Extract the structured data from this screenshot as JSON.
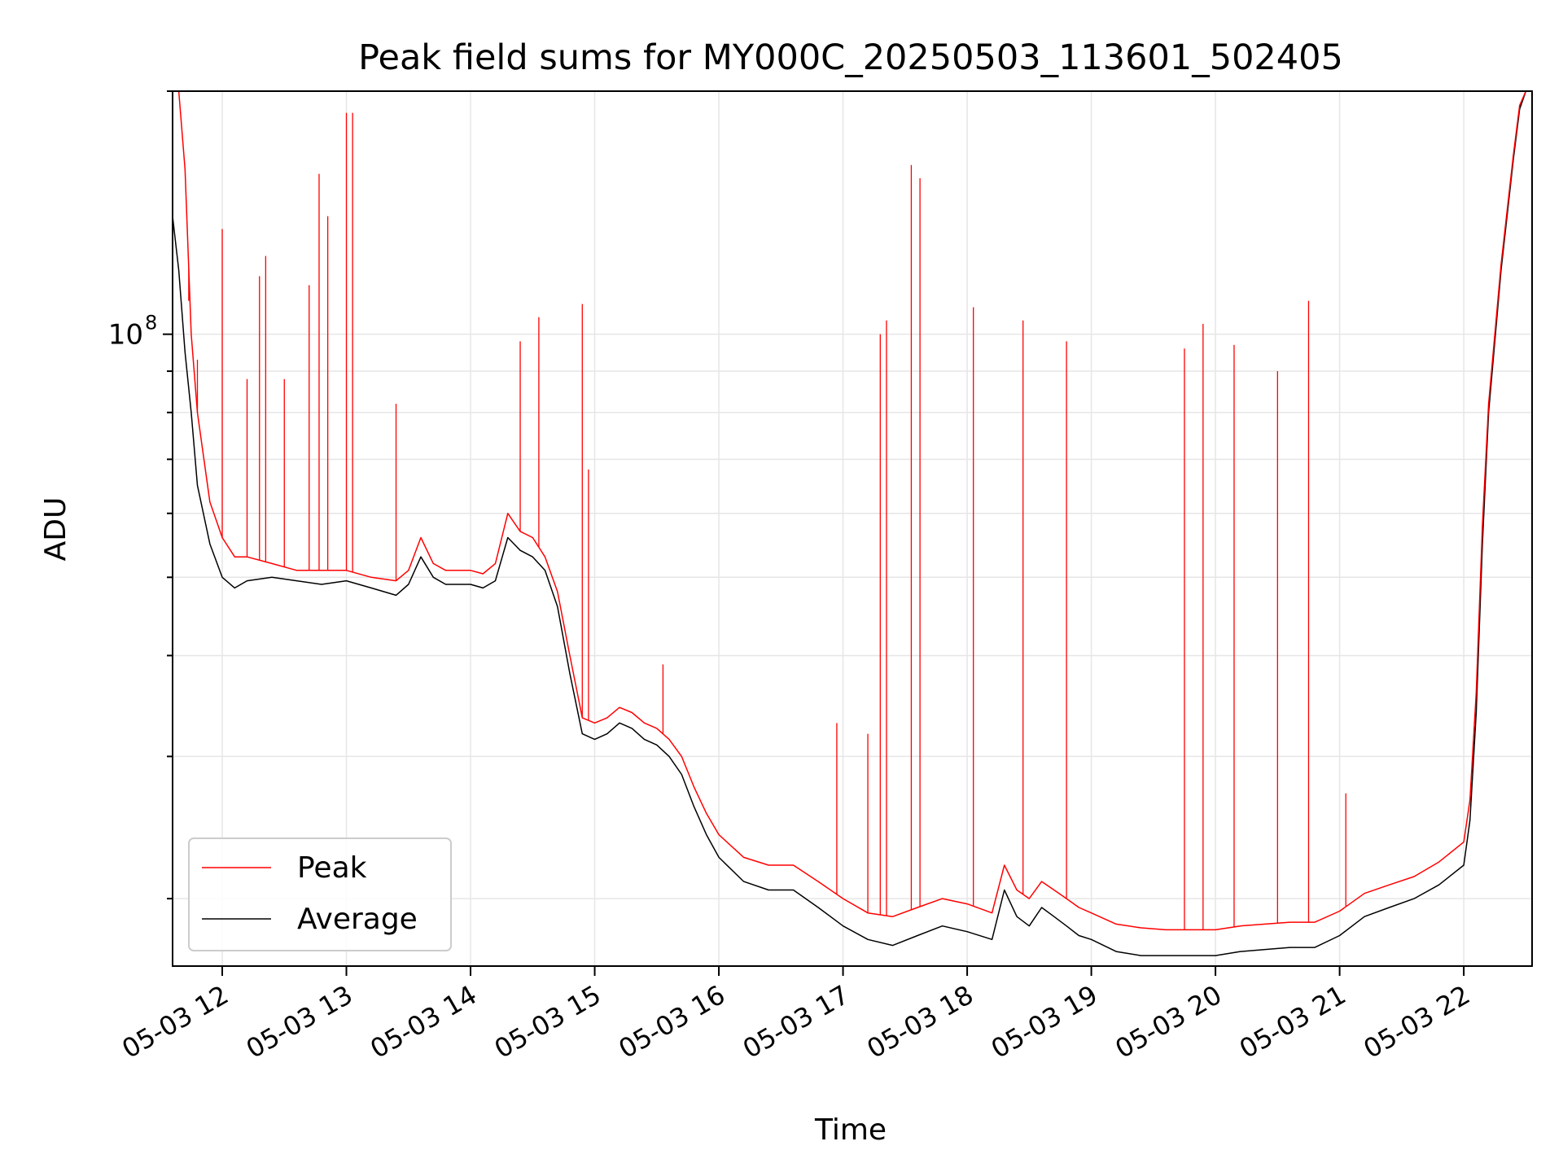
{
  "chart_data": {
    "type": "line",
    "title": "Peak field sums for MY000C_20250503_113601_502405",
    "xlabel": "Time",
    "ylabel": "ADU",
    "y_scale": "log",
    "ylim": [
      16500000,
      200000000
    ],
    "xlim_hours": [
      11.6,
      22.55
    ],
    "x_ticks": [
      {
        "hour": 12,
        "label": "05-03 12"
      },
      {
        "hour": 13,
        "label": "05-03 13"
      },
      {
        "hour": 14,
        "label": "05-03 14"
      },
      {
        "hour": 15,
        "label": "05-03 15"
      },
      {
        "hour": 16,
        "label": "05-03 16"
      },
      {
        "hour": 17,
        "label": "05-03 17"
      },
      {
        "hour": 18,
        "label": "05-03 18"
      },
      {
        "hour": 19,
        "label": "05-03 19"
      },
      {
        "hour": 20,
        "label": "05-03 20"
      },
      {
        "hour": 21,
        "label": "05-03 21"
      },
      {
        "hour": 22,
        "label": "05-03 22"
      }
    ],
    "y_major_tick": {
      "value": 100000000,
      "label_base": "10",
      "label_exp": "8"
    },
    "y_minor_ticks": [
      20000000,
      30000000,
      40000000,
      50000000,
      60000000,
      70000000,
      80000000,
      90000000,
      200000000
    ],
    "grid": true,
    "legend_position": "lower-left",
    "series": [
      {
        "name": "Average",
        "color": "#000000",
        "x": [
          11.6,
          11.65,
          11.7,
          11.75,
          11.8,
          11.9,
          12.0,
          12.1,
          12.2,
          12.4,
          12.6,
          12.8,
          13.0,
          13.2,
          13.4,
          13.5,
          13.6,
          13.7,
          13.8,
          14.0,
          14.1,
          14.2,
          14.3,
          14.4,
          14.5,
          14.6,
          14.7,
          14.8,
          14.9,
          15.0,
          15.1,
          15.2,
          15.3,
          15.4,
          15.5,
          15.6,
          15.7,
          15.8,
          15.9,
          16.0,
          16.2,
          16.4,
          16.6,
          16.8,
          17.0,
          17.2,
          17.4,
          17.6,
          17.8,
          18.0,
          18.2,
          18.3,
          18.4,
          18.5,
          18.6,
          18.7,
          18.8,
          18.9,
          19.0,
          19.2,
          19.4,
          19.6,
          19.8,
          20.0,
          20.2,
          20.4,
          20.6,
          20.8,
          21.0,
          21.2,
          21.4,
          21.6,
          21.8,
          22.0,
          22.05,
          22.1,
          22.15,
          22.2,
          22.3,
          22.4,
          22.45,
          22.5
        ],
        "y": [
          140000000,
          120000000,
          95000000,
          80000000,
          65000000,
          55000000,
          50000000,
          48500000,
          49500000,
          50000000,
          49500000,
          49000000,
          49500000,
          48500000,
          47500000,
          49000000,
          53000000,
          50000000,
          49000000,
          49000000,
          48500000,
          49500000,
          56000000,
          54000000,
          53000000,
          51000000,
          46000000,
          38000000,
          32000000,
          31500000,
          32000000,
          33000000,
          32500000,
          31500000,
          31000000,
          30000000,
          28500000,
          26000000,
          24000000,
          22500000,
          21000000,
          20500000,
          20500000,
          19500000,
          18500000,
          17800000,
          17500000,
          18000000,
          18500000,
          18200000,
          17800000,
          20500000,
          19000000,
          18500000,
          19500000,
          19000000,
          18500000,
          18000000,
          17800000,
          17200000,
          17000000,
          17000000,
          17000000,
          17000000,
          17200000,
          17300000,
          17400000,
          17400000,
          18000000,
          19000000,
          19500000,
          20000000,
          20800000,
          22000000,
          25000000,
          34000000,
          55000000,
          80000000,
          120000000,
          165000000,
          190000000,
          200000000
        ]
      },
      {
        "name": "Peak",
        "color": "#ff0000",
        "x": [
          11.6,
          11.65,
          11.7,
          11.75,
          11.8,
          11.9,
          12.0,
          12.1,
          12.2,
          12.4,
          12.6,
          12.8,
          13.0,
          13.2,
          13.4,
          13.5,
          13.6,
          13.7,
          13.8,
          14.0,
          14.1,
          14.2,
          14.3,
          14.4,
          14.5,
          14.6,
          14.7,
          14.8,
          14.9,
          15.0,
          15.1,
          15.2,
          15.3,
          15.4,
          15.5,
          15.6,
          15.7,
          15.8,
          15.9,
          16.0,
          16.2,
          16.4,
          16.6,
          16.8,
          17.0,
          17.2,
          17.4,
          17.6,
          17.8,
          18.0,
          18.2,
          18.3,
          18.4,
          18.5,
          18.6,
          18.7,
          18.8,
          18.9,
          19.0,
          19.2,
          19.4,
          19.6,
          19.8,
          20.0,
          20.2,
          20.4,
          20.6,
          20.8,
          21.0,
          21.2,
          21.4,
          21.6,
          21.8,
          22.0,
          22.05,
          22.1,
          22.15,
          22.2,
          22.3,
          22.4,
          22.45,
          22.5
        ],
        "y": [
          200000000,
          200000000,
          160000000,
          100000000,
          80000000,
          62000000,
          56000000,
          53000000,
          53000000,
          52000000,
          51000000,
          51000000,
          51000000,
          50000000,
          49500000,
          51000000,
          56000000,
          52000000,
          51000000,
          51000000,
          50500000,
          52000000,
          60000000,
          57000000,
          56000000,
          53000000,
          48000000,
          40000000,
          33500000,
          33000000,
          33500000,
          34500000,
          34000000,
          33000000,
          32500000,
          31500000,
          30000000,
          27500000,
          25500000,
          24000000,
          22500000,
          22000000,
          22000000,
          21000000,
          20000000,
          19200000,
          19000000,
          19500000,
          20000000,
          19700000,
          19200000,
          22000000,
          20500000,
          20000000,
          21000000,
          20500000,
          20000000,
          19500000,
          19200000,
          18600000,
          18400000,
          18300000,
          18300000,
          18300000,
          18500000,
          18600000,
          18700000,
          18700000,
          19300000,
          20300000,
          20800000,
          21300000,
          22200000,
          23500000,
          26500000,
          36000000,
          58000000,
          82000000,
          122000000,
          167000000,
          192000000,
          200000000
        ]
      }
    ],
    "peak_spikes": [
      {
        "x": 11.73,
        "y": 110000000
      },
      {
        "x": 11.8,
        "y": 93000000
      },
      {
        "x": 12.0,
        "y": 135000000
      },
      {
        "x": 12.2,
        "y": 88000000
      },
      {
        "x": 12.3,
        "y": 118000000
      },
      {
        "x": 12.35,
        "y": 125000000
      },
      {
        "x": 12.5,
        "y": 88000000
      },
      {
        "x": 12.7,
        "y": 115000000
      },
      {
        "x": 12.78,
        "y": 158000000
      },
      {
        "x": 12.85,
        "y": 140000000
      },
      {
        "x": 13.0,
        "y": 188000000
      },
      {
        "x": 13.05,
        "y": 188000000
      },
      {
        "x": 13.4,
        "y": 82000000
      },
      {
        "x": 14.4,
        "y": 98000000
      },
      {
        "x": 14.55,
        "y": 105000000
      },
      {
        "x": 14.9,
        "y": 109000000
      },
      {
        "x": 14.95,
        "y": 68000000
      },
      {
        "x": 15.55,
        "y": 39000000
      },
      {
        "x": 16.95,
        "y": 33000000
      },
      {
        "x": 17.2,
        "y": 32000000
      },
      {
        "x": 17.3,
        "y": 100000000
      },
      {
        "x": 17.35,
        "y": 104000000
      },
      {
        "x": 17.55,
        "y": 162000000
      },
      {
        "x": 17.62,
        "y": 156000000
      },
      {
        "x": 18.05,
        "y": 108000000
      },
      {
        "x": 18.45,
        "y": 104000000
      },
      {
        "x": 18.8,
        "y": 98000000
      },
      {
        "x": 19.75,
        "y": 96000000
      },
      {
        "x": 19.9,
        "y": 103000000
      },
      {
        "x": 20.15,
        "y": 97000000
      },
      {
        "x": 20.5,
        "y": 90000000
      },
      {
        "x": 20.75,
        "y": 110000000
      },
      {
        "x": 21.05,
        "y": 27000000
      }
    ]
  }
}
